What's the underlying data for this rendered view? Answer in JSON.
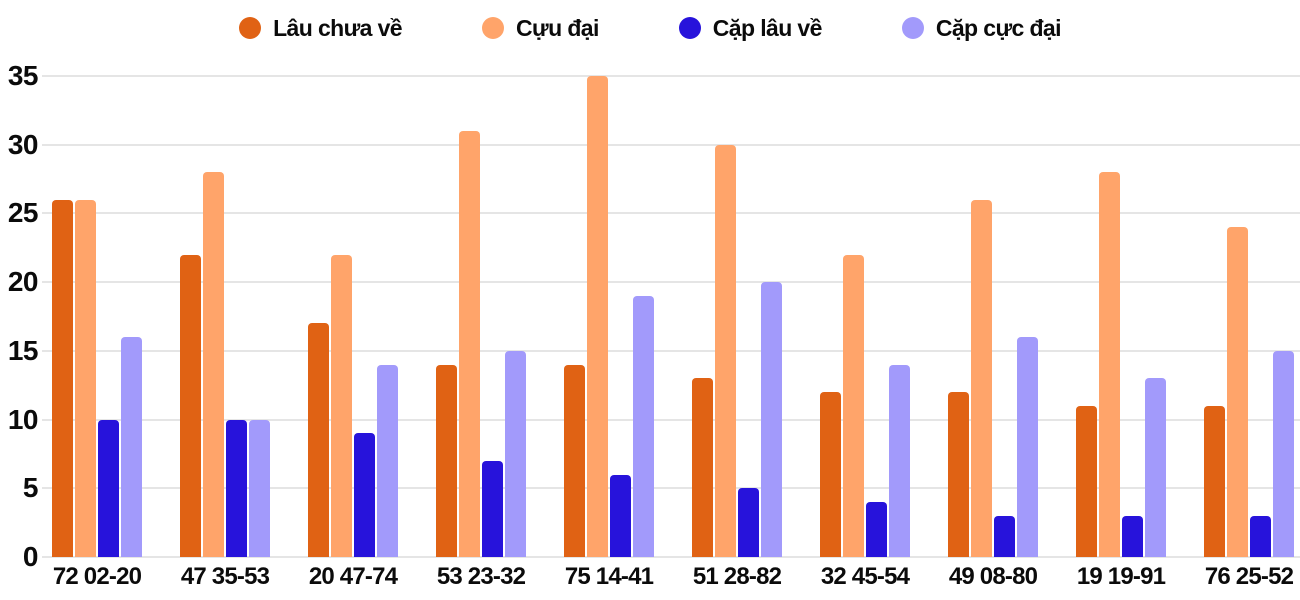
{
  "chart_data": {
    "type": "bar",
    "title": "",
    "xlabel": "",
    "ylabel": "",
    "ylim": [
      0,
      35
    ],
    "yticks": [
      0,
      5,
      10,
      15,
      20,
      25,
      30,
      35
    ],
    "grid": true,
    "legend_position": "top",
    "categories": [
      "72 02-20",
      "47 35-53",
      "20 47-74",
      "53 23-32",
      "75 14-41",
      "51 28-82",
      "32 45-54",
      "49 08-80",
      "19 19-91",
      "76 25-52"
    ],
    "series": [
      {
        "name": "Lâu chưa về",
        "color": "#E06214",
        "values": [
          26,
          22,
          17,
          14,
          14,
          13,
          12,
          12,
          11,
          11
        ]
      },
      {
        "name": "Cựu đại",
        "color": "#FFA46A",
        "values": [
          26,
          28,
          22,
          31,
          35,
          30,
          22,
          26,
          28,
          24
        ]
      },
      {
        "name": "Cặp lâu về",
        "color": "#2713DB",
        "values": [
          10,
          10,
          9,
          7,
          6,
          5,
          4,
          3,
          3,
          3
        ]
      },
      {
        "name": "Cặp cực đại",
        "color": "#A29AFB",
        "values": [
          16,
          10,
          14,
          15,
          19,
          20,
          14,
          16,
          13,
          15
        ]
      }
    ]
  },
  "colors": {
    "background": "#ffffff",
    "gridline": "#e5e5e5",
    "text": "#0b0b0b"
  }
}
